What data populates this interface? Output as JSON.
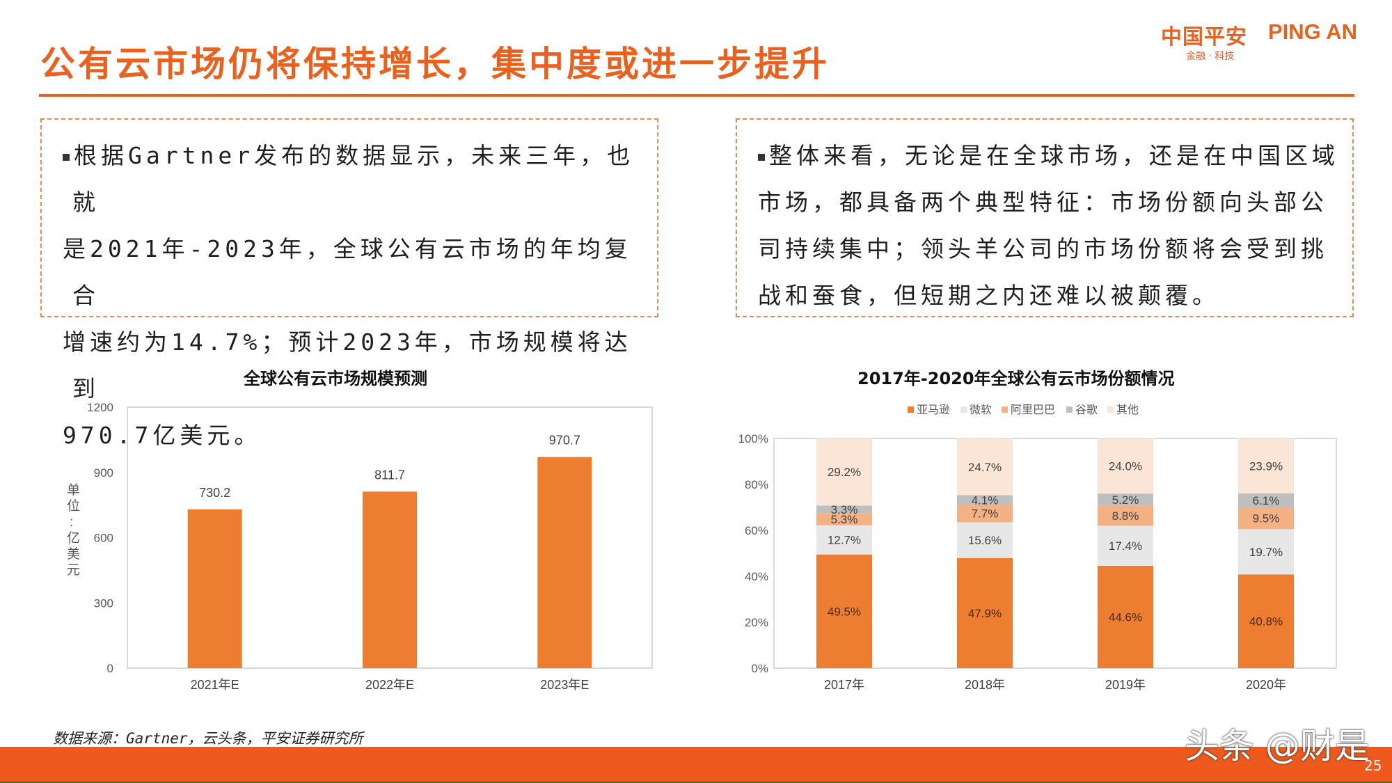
{
  "header": {
    "title": "公有云市场仍将保持增长，集中度或进一步提升",
    "logo_cn": "中国平安",
    "logo_en": "PING AN",
    "logo_sub": "金融 · 科技"
  },
  "left_box": {
    "lines": [
      "根据Gartner发布的数据显示，未来三年，也就",
      "是2021年-2023年，全球公有云市场的年均复合",
      "增速约为14.7%；预计2023年，市场规模将达到",
      "970.7亿美元。"
    ]
  },
  "right_box": {
    "lines": [
      "整体来看，无论是在全球市场，还是在中国区域",
      "市场，都具备两个典型特征：市场份额向头部公",
      "司持续集中；领头羊公司的市场份额将会受到挑",
      "战和蚕食，但短期之内还难以被颠覆。"
    ]
  },
  "chart_data": [
    {
      "type": "bar",
      "title": "全球公有云市场规模预测",
      "ylabel": "单位：亿美元",
      "categories": [
        "2021年E",
        "2022年E",
        "2023年E"
      ],
      "values": [
        730.2,
        811.7,
        970.7
      ],
      "data_labels": [
        "730.2",
        "811.7",
        "970.7"
      ],
      "ylim": [
        0,
        1200
      ],
      "yticks": [
        "0",
        "300",
        "600",
        "900",
        "1200"
      ],
      "colors": {
        "bar": "#ed7d31"
      }
    },
    {
      "type": "bar",
      "stacked": true,
      "title": "2017年-2020年全球公有云市场份额情况",
      "categories": [
        "2017年",
        "2018年",
        "2019年",
        "2020年"
      ],
      "ylim": [
        0,
        100
      ],
      "yticks": [
        "0%",
        "20%",
        "40%",
        "60%",
        "80%",
        "100%"
      ],
      "legend_position": "top",
      "series": [
        {
          "name": "亚马逊",
          "color": "#ed7d31",
          "values": [
            49.5,
            47.9,
            44.6,
            40.8
          ],
          "labels": [
            "49.5%",
            "47.9%",
            "44.6%",
            "40.8%"
          ]
        },
        {
          "name": "微软",
          "color": "#e7e7e7",
          "values": [
            12.7,
            15.6,
            17.4,
            19.7
          ],
          "labels": [
            "12.7%",
            "15.6%",
            "17.4%",
            "19.7%"
          ]
        },
        {
          "name": "阿里巴巴",
          "color": "#f4b183",
          "values": [
            5.3,
            7.7,
            8.8,
            9.5
          ],
          "labels": [
            "5.3%",
            "7.7%",
            "8.8%",
            "9.5%"
          ]
        },
        {
          "name": "谷歌",
          "color": "#bfbfbf",
          "values": [
            3.3,
            4.1,
            5.2,
            6.1
          ],
          "labels": [
            "3.3%",
            "4.1%",
            "5.2%",
            "6.1%"
          ]
        },
        {
          "name": "其他",
          "color": "#fbe5d6",
          "values": [
            29.2,
            24.7,
            24.0,
            23.9
          ],
          "labels": [
            "29.2%",
            "24.7%",
            "24.0%",
            "23.9%"
          ]
        }
      ]
    }
  ],
  "footer": {
    "source": "数据来源：Gartner，云头条，平安证券研究所",
    "watermark": "头条 @财是",
    "page_number": "25"
  }
}
